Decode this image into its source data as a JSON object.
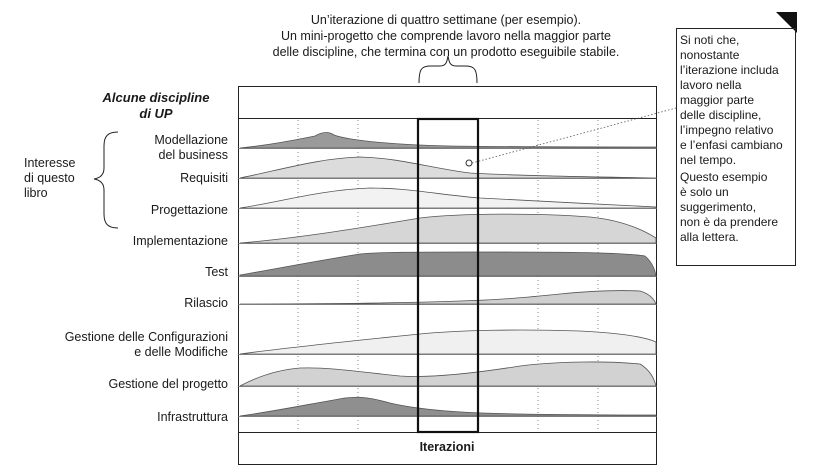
{
  "top_caption": {
    "lines": [
      "Un’iterazione di quattro settimane (per esempio).",
      "Un mini-progetto che comprende lavoro nella maggior parte",
      "delle discipline, che termina con un prodotto eseguibile stabile."
    ]
  },
  "disciplines_header": [
    "Alcune discipline",
    "di UP"
  ],
  "interest_label": [
    "Interesse",
    "di questo",
    "libro"
  ],
  "disciplines": [
    {
      "lines": [
        "Modellazione",
        "del business"
      ],
      "color": "#9a9a9a"
    },
    {
      "lines": [
        "Requisiti"
      ],
      "color": "#dcdcdc"
    },
    {
      "lines": [
        "Progettazione"
      ],
      "color": "#f2f2f2"
    },
    {
      "lines": [
        "Implementazione"
      ],
      "color": "#d6d6d6"
    },
    {
      "lines": [
        "Test"
      ],
      "color": "#8c8c8c"
    },
    {
      "lines": [
        "Rilascio"
      ],
      "color": "#cfcfcf"
    },
    {
      "lines": [
        "Gestione delle Configurazioni",
        "e delle Modifiche"
      ],
      "color": "#f0f0f0"
    },
    {
      "lines": [
        "Gestione del progetto"
      ],
      "color": "#d2d2d2"
    },
    {
      "lines": [
        "Infrastruttura"
      ],
      "color": "#8f8f8f"
    }
  ],
  "note": {
    "paragraphs": [
      [
        "Si noti che,",
        "nonostante",
        "l’iterazione includa",
        "lavoro nella",
        "maggior parte",
        "delle discipline,",
        "l’impegno relativo",
        "e l’enfasi cambiano",
        "nel tempo."
      ],
      [
        "Questo esempio",
        "è solo un",
        "suggerimento,",
        "non è da prendere",
        "alla lettera."
      ]
    ]
  },
  "footer_label": "Iterazioni"
}
